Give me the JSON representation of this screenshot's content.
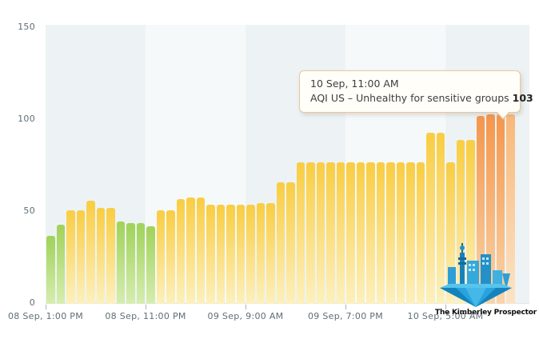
{
  "chart_data": {
    "type": "bar",
    "title": "",
    "xlabel": "",
    "ylabel": "",
    "ylim": [
      0,
      150
    ],
    "grid": "off",
    "legend": "none",
    "y_tick_labels": [
      "0",
      "50",
      "100",
      "150"
    ],
    "y_tick_values": [
      0,
      50,
      100,
      150
    ],
    "x_tick_labels": [
      "08 Sep, 1:00 PM",
      "08 Sep, 11:00 PM",
      "09 Sep, 9:00 AM",
      "09 Sep, 7:00 PM",
      "10 Sep, 5:00 AM"
    ],
    "values": [
      37,
      43,
      51,
      51,
      56,
      52,
      52,
      45,
      44,
      44,
      42,
      51,
      51,
      57,
      58,
      58,
      54,
      54,
      54,
      54,
      54,
      55,
      55,
      66,
      66,
      77,
      77,
      77,
      77,
      77,
      77,
      77,
      77,
      77,
      77,
      77,
      77,
      77,
      93,
      93,
      77,
      89,
      89,
      102,
      103,
      103,
      103
    ],
    "colors": [
      "green",
      "green",
      "yellow",
      "yellow",
      "yellow",
      "yellow",
      "yellow",
      "green",
      "green",
      "green",
      "green",
      "yellow",
      "yellow",
      "yellow",
      "yellow",
      "yellow",
      "yellow",
      "yellow",
      "yellow",
      "yellow",
      "yellow",
      "yellow",
      "yellow",
      "yellow",
      "yellow",
      "yellow",
      "yellow",
      "yellow",
      "yellow",
      "yellow",
      "yellow",
      "yellow",
      "yellow",
      "yellow",
      "yellow",
      "yellow",
      "yellow",
      "yellow",
      "yellow",
      "yellow",
      "yellow",
      "yellow",
      "yellow",
      "orange",
      "orange",
      "orange",
      "orange"
    ],
    "highlighted_index": 46
  },
  "tooltip": {
    "date": "10 Sep, 11:00 AM",
    "label": "AQI US – Unhealthy for sensitive groups",
    "value": "103"
  },
  "watermark": {
    "text": "The Kimberley Prospector"
  },
  "colors": {
    "green_top": "#a2d35c",
    "green_bottom": "#d6edb0",
    "yellow_top": "#f9ce47",
    "yellow_bottom": "#fdf0bc",
    "orange_top": "#f5984f",
    "orange_bottom": "#fad4a8",
    "orange_highlight_top": "#f8ba7c",
    "orange_highlight_bottom": "#fce3c6",
    "band_dark": "#edf3f5",
    "band_light": "#f6f9fa",
    "axis_text": "#5f6e76",
    "tooltip_border": "#e9c6a0",
    "tooltip_bg": "#fffef9"
  }
}
